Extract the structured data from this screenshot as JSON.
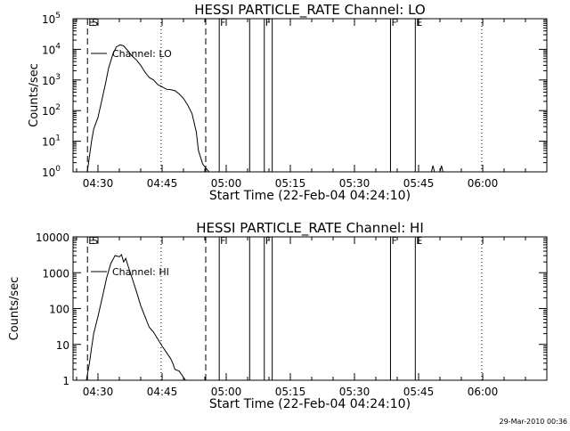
{
  "footer": {
    "timestamp": "29-Mar-2010 00:36"
  },
  "chart_data": [
    {
      "type": "line",
      "title": "HESSI PARTICLE_RATE Channel: LO",
      "xlabel": "Start Time (22-Feb-04 04:24:10)",
      "ylabel": "Counts/sec",
      "y_scale": "log",
      "ylim": [
        1,
        100000
      ],
      "xlim_minutes": [
        264.17,
        375
      ],
      "x_ticks": [
        {
          "minute": 270,
          "label": "04:30"
        },
        {
          "minute": 285,
          "label": "04:45"
        },
        {
          "minute": 300,
          "label": "05:00"
        },
        {
          "minute": 315,
          "label": "05:15"
        },
        {
          "minute": 330,
          "label": "05:30"
        },
        {
          "minute": 345,
          "label": "05:45"
        },
        {
          "minute": 360,
          "label": "06:00"
        }
      ],
      "y_ticks": [
        {
          "value": 1,
          "label": "10^0"
        },
        {
          "value": 10,
          "label": "10^1"
        },
        {
          "value": 100,
          "label": "10^2"
        },
        {
          "value": 1000,
          "label": "10^3"
        },
        {
          "value": 10000,
          "label": "10^4"
        },
        {
          "value": 100000,
          "label": "10^5"
        }
      ],
      "legend": {
        "label": "Channel: LO",
        "placement": "top-left"
      },
      "series": [
        {
          "x": [
            267.5,
            268.5,
            269.0,
            270.0,
            271.0,
            271.8,
            272.5,
            273.5,
            274.3,
            275.2,
            276.0,
            277.0,
            278.0,
            279.0,
            280.0,
            281.0,
            282.0,
            283.0,
            284.0,
            285.0,
            286.0,
            287.0,
            288.0,
            289.0,
            290.0,
            291.0,
            292.0,
            293.0,
            293.5,
            294.5,
            295.5,
            296.0
          ],
          "y": [
            1,
            10,
            25,
            60,
            250,
            800,
            2500,
            7000,
            12000,
            14000,
            13000,
            9000,
            6000,
            4500,
            3000,
            1800,
            1200,
            1000,
            700,
            600,
            500,
            480,
            450,
            350,
            250,
            150,
            80,
            20,
            5,
            1.8,
            1.2,
            1
          ],
          "color": "#000000"
        },
        {
          "x": [
            348.0,
            348.35,
            348.7,
            350.0,
            350.35,
            350.7
          ],
          "y": [
            1,
            1.6,
            1,
            1,
            1.6,
            1
          ]
        }
      ],
      "markers": [
        {
          "minute": 267.55,
          "label": "E",
          "style": "dashed"
        },
        {
          "minute": 267.55,
          "label": "S",
          "style": "none"
        },
        {
          "minute": 284.77,
          "label": "",
          "style": "dotted"
        },
        {
          "minute": 295.21,
          "label": "",
          "style": "dashed"
        },
        {
          "minute": 298.37,
          "label": "F",
          "style": "solid"
        },
        {
          "minute": 305.48,
          "label": "",
          "style": "solid"
        },
        {
          "minute": 308.91,
          "label": "F",
          "style": "solid"
        },
        {
          "minute": 310.76,
          "label": "",
          "style": "solid"
        },
        {
          "minute": 338.43,
          "label": "F",
          "style": "solid"
        },
        {
          "minute": 344.23,
          "label": "E",
          "style": "solid"
        },
        {
          "minute": 359.78,
          "label": "",
          "style": "dotted"
        }
      ]
    },
    {
      "type": "line",
      "title": "HESSI PARTICLE_RATE Channel: HI",
      "xlabel": "Start Time (22-Feb-04 04:24:10)",
      "ylabel": "Counts/sec",
      "y_scale": "log",
      "ylim": [
        1,
        10000
      ],
      "xlim_minutes": [
        264.17,
        375
      ],
      "x_ticks": [
        {
          "minute": 270,
          "label": "04:30"
        },
        {
          "minute": 285,
          "label": "04:45"
        },
        {
          "minute": 300,
          "label": "05:00"
        },
        {
          "minute": 315,
          "label": "05:15"
        },
        {
          "minute": 330,
          "label": "05:30"
        },
        {
          "minute": 345,
          "label": "05:45"
        },
        {
          "minute": 360,
          "label": "06:00"
        }
      ],
      "y_ticks": [
        {
          "value": 1,
          "label": "1"
        },
        {
          "value": 10,
          "label": "10"
        },
        {
          "value": 100,
          "label": "100"
        },
        {
          "value": 1000,
          "label": "1000"
        },
        {
          "value": 10000,
          "label": "10000"
        }
      ],
      "legend": {
        "label": "Channel: HI",
        "placement": "top-left"
      },
      "series": [
        {
          "x": [
            267.3,
            268.0,
            268.5,
            269.0,
            270.0,
            271.0,
            272.0,
            273.0,
            274.0,
            275.0,
            275.5,
            276.0,
            276.5,
            277.0,
            278.0,
            279.0,
            280.0,
            281.0,
            282.0,
            283.0,
            284.0,
            285.0,
            286.0,
            287.0,
            287.5,
            288.0,
            289.0,
            290.0,
            290.5
          ],
          "y": [
            1,
            3,
            8,
            20,
            60,
            200,
            700,
            1800,
            3000,
            2800,
            3200,
            2000,
            2500,
            1600,
            700,
            300,
            120,
            60,
            30,
            22,
            14,
            9,
            6,
            4,
            3,
            2,
            1.8,
            1.2,
            1
          ],
          "color": "#000000"
        }
      ],
      "markers": [
        {
          "minute": 267.55,
          "label": "E",
          "style": "dashed"
        },
        {
          "minute": 267.55,
          "label": "S",
          "style": "none"
        },
        {
          "minute": 284.77,
          "label": "",
          "style": "dotted"
        },
        {
          "minute": 295.21,
          "label": "",
          "style": "dashed"
        },
        {
          "minute": 298.37,
          "label": "F",
          "style": "solid"
        },
        {
          "minute": 305.48,
          "label": "",
          "style": "solid"
        },
        {
          "minute": 308.91,
          "label": "F",
          "style": "solid"
        },
        {
          "minute": 310.76,
          "label": "",
          "style": "solid"
        },
        {
          "minute": 338.43,
          "label": "F",
          "style": "solid"
        },
        {
          "minute": 344.23,
          "label": "E",
          "style": "solid"
        },
        {
          "minute": 359.78,
          "label": "",
          "style": "dotted"
        }
      ]
    }
  ]
}
